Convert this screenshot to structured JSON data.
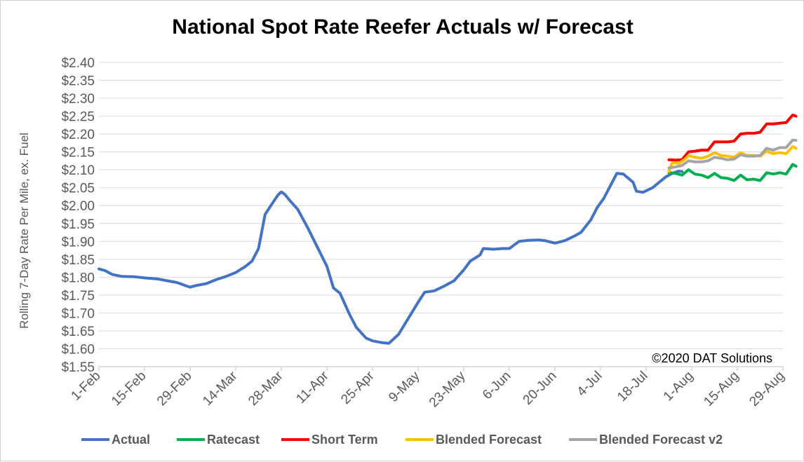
{
  "chart_data": {
    "type": "line",
    "title": "National Spot Rate Reefer Actuals w/ Forecast",
    "ylabel": "Rolling 7-Day Rate Per Mile, ex. Fuel",
    "xlabel": "",
    "annotation": "©2020 DAT Solutions",
    "ylim": [
      1.55,
      2.4
    ],
    "y_ticks": [
      "$1.55",
      "$1.60",
      "$1.65",
      "$1.70",
      "$1.75",
      "$1.80",
      "$1.85",
      "$1.90",
      "$1.95",
      "$2.00",
      "$2.05",
      "$2.10",
      "$2.15",
      "$2.20",
      "$2.25",
      "$2.30",
      "$2.35",
      "$2.40"
    ],
    "x_ticks": [
      "1-Feb",
      "15-Feb",
      "29-Feb",
      "14-Mar",
      "28-Mar",
      "11-Apr",
      "25-Apr",
      "9-May",
      "23-May",
      "6-Jun",
      "20-Jun",
      "4-Jul",
      "18-Jul",
      "1-Aug",
      "15-Aug",
      "29-Aug"
    ],
    "x_domain": [
      "2020-02-01",
      "2020-08-29"
    ],
    "legend_position": "bottom",
    "grid": "horizontal",
    "series": [
      {
        "name": "Actual",
        "color": "#4472C4",
        "points": [
          [
            "2020-02-01",
            1.823
          ],
          [
            "2020-02-03",
            1.818
          ],
          [
            "2020-02-05",
            1.808
          ],
          [
            "2020-02-08",
            1.802
          ],
          [
            "2020-02-12",
            1.801
          ],
          [
            "2020-02-15",
            1.798
          ],
          [
            "2020-02-19",
            1.795
          ],
          [
            "2020-02-22",
            1.79
          ],
          [
            "2020-02-25",
            1.785
          ],
          [
            "2020-02-28",
            1.775
          ],
          [
            "2020-02-29",
            1.772
          ],
          [
            "2020-03-02",
            1.777
          ],
          [
            "2020-03-05",
            1.782
          ],
          [
            "2020-03-08",
            1.793
          ],
          [
            "2020-03-11",
            1.802
          ],
          [
            "2020-03-14",
            1.813
          ],
          [
            "2020-03-17",
            1.83
          ],
          [
            "2020-03-19",
            1.845
          ],
          [
            "2020-03-21",
            1.88
          ],
          [
            "2020-03-23",
            1.975
          ],
          [
            "2020-03-25",
            2.003
          ],
          [
            "2020-03-27",
            2.03
          ],
          [
            "2020-03-28",
            2.038
          ],
          [
            "2020-03-29",
            2.032
          ],
          [
            "2020-03-31",
            2.01
          ],
          [
            "2020-04-02",
            1.99
          ],
          [
            "2020-04-05",
            1.94
          ],
          [
            "2020-04-08",
            1.885
          ],
          [
            "2020-04-11",
            1.83
          ],
          [
            "2020-04-13",
            1.77
          ],
          [
            "2020-04-15",
            1.755
          ],
          [
            "2020-04-18",
            1.695
          ],
          [
            "2020-04-20",
            1.66
          ],
          [
            "2020-04-23",
            1.63
          ],
          [
            "2020-04-25",
            1.622
          ],
          [
            "2020-04-28",
            1.617
          ],
          [
            "2020-04-30",
            1.615
          ],
          [
            "2020-05-03",
            1.64
          ],
          [
            "2020-05-05",
            1.67
          ],
          [
            "2020-05-07",
            1.7
          ],
          [
            "2020-05-09",
            1.73
          ],
          [
            "2020-05-11",
            1.758
          ],
          [
            "2020-05-14",
            1.762
          ],
          [
            "2020-05-17",
            1.775
          ],
          [
            "2020-05-20",
            1.79
          ],
          [
            "2020-05-23",
            1.82
          ],
          [
            "2020-05-25",
            1.845
          ],
          [
            "2020-05-28",
            1.862
          ],
          [
            "2020-05-29",
            1.88
          ],
          [
            "2020-06-01",
            1.878
          ],
          [
            "2020-06-04",
            1.88
          ],
          [
            "2020-06-06",
            1.88
          ],
          [
            "2020-06-09",
            1.9
          ],
          [
            "2020-06-12",
            1.903
          ],
          [
            "2020-06-15",
            1.904
          ],
          [
            "2020-06-17",
            1.902
          ],
          [
            "2020-06-20",
            1.895
          ],
          [
            "2020-06-23",
            1.902
          ],
          [
            "2020-06-26",
            1.915
          ],
          [
            "2020-06-28",
            1.925
          ],
          [
            "2020-07-01",
            1.96
          ],
          [
            "2020-07-03",
            1.995
          ],
          [
            "2020-07-05",
            2.02
          ],
          [
            "2020-07-07",
            2.055
          ],
          [
            "2020-07-09",
            2.09
          ],
          [
            "2020-07-11",
            2.088
          ],
          [
            "2020-07-14",
            2.065
          ],
          [
            "2020-07-15",
            2.04
          ],
          [
            "2020-07-17",
            2.037
          ],
          [
            "2020-07-20",
            2.05
          ],
          [
            "2020-07-22",
            2.065
          ],
          [
            "2020-07-24",
            2.08
          ],
          [
            "2020-07-26",
            2.09
          ],
          [
            "2020-07-28",
            2.096
          ],
          [
            "2020-07-29",
            2.095
          ]
        ]
      },
      {
        "name": "Ratecast",
        "color": "#00B050",
        "points": [
          [
            "2020-07-25",
            2.092
          ],
          [
            "2020-07-27",
            2.09
          ],
          [
            "2020-07-29",
            2.085
          ],
          [
            "2020-07-31",
            2.1
          ],
          [
            "2020-08-02",
            2.088
          ],
          [
            "2020-08-04",
            2.085
          ],
          [
            "2020-08-06",
            2.078
          ],
          [
            "2020-08-08",
            2.09
          ],
          [
            "2020-08-10",
            2.078
          ],
          [
            "2020-08-12",
            2.076
          ],
          [
            "2020-08-14",
            2.07
          ],
          [
            "2020-08-16",
            2.085
          ],
          [
            "2020-08-18",
            2.072
          ],
          [
            "2020-08-20",
            2.074
          ],
          [
            "2020-08-22",
            2.07
          ],
          [
            "2020-08-24",
            2.092
          ],
          [
            "2020-08-26",
            2.088
          ],
          [
            "2020-08-28",
            2.092
          ],
          [
            "2020-08-30",
            2.088
          ],
          [
            "2020-09-01",
            2.115
          ],
          [
            "2020-09-02",
            2.11
          ]
        ]
      },
      {
        "name": "Short Term",
        "color": "#FF0000",
        "points": [
          [
            "2020-07-25",
            2.128
          ],
          [
            "2020-07-27",
            2.127
          ],
          [
            "2020-07-29",
            2.128
          ],
          [
            "2020-07-31",
            2.15
          ],
          [
            "2020-08-02",
            2.152
          ],
          [
            "2020-08-04",
            2.155
          ],
          [
            "2020-08-06",
            2.155
          ],
          [
            "2020-08-08",
            2.178
          ],
          [
            "2020-08-10",
            2.178
          ],
          [
            "2020-08-12",
            2.178
          ],
          [
            "2020-08-14",
            2.18
          ],
          [
            "2020-08-16",
            2.2
          ],
          [
            "2020-08-18",
            2.202
          ],
          [
            "2020-08-20",
            2.202
          ],
          [
            "2020-08-22",
            2.205
          ],
          [
            "2020-08-24",
            2.228
          ],
          [
            "2020-08-26",
            2.228
          ],
          [
            "2020-08-28",
            2.23
          ],
          [
            "2020-08-30",
            2.232
          ],
          [
            "2020-09-01",
            2.253
          ],
          [
            "2020-09-02",
            2.25
          ]
        ]
      },
      {
        "name": "Blended Forecast",
        "color": "#FFC000",
        "points": [
          [
            "2020-07-25",
            2.095
          ],
          [
            "2020-07-26",
            2.12
          ],
          [
            "2020-07-28",
            2.118
          ],
          [
            "2020-07-30",
            2.13
          ],
          [
            "2020-07-31",
            2.14
          ],
          [
            "2020-08-02",
            2.135
          ],
          [
            "2020-08-04",
            2.132
          ],
          [
            "2020-08-06",
            2.138
          ],
          [
            "2020-08-08",
            2.148
          ],
          [
            "2020-08-10",
            2.14
          ],
          [
            "2020-08-12",
            2.138
          ],
          [
            "2020-08-14",
            2.135
          ],
          [
            "2020-08-16",
            2.148
          ],
          [
            "2020-08-18",
            2.14
          ],
          [
            "2020-08-20",
            2.14
          ],
          [
            "2020-08-22",
            2.138
          ],
          [
            "2020-08-24",
            2.152
          ],
          [
            "2020-08-26",
            2.145
          ],
          [
            "2020-08-28",
            2.148
          ],
          [
            "2020-08-30",
            2.145
          ],
          [
            "2020-09-01",
            2.165
          ],
          [
            "2020-09-02",
            2.16
          ]
        ]
      },
      {
        "name": "Blended Forecast v2",
        "color": "#A5A5A5",
        "points": [
          [
            "2020-07-25",
            2.105
          ],
          [
            "2020-07-27",
            2.108
          ],
          [
            "2020-07-29",
            2.112
          ],
          [
            "2020-07-31",
            2.125
          ],
          [
            "2020-08-02",
            2.122
          ],
          [
            "2020-08-04",
            2.122
          ],
          [
            "2020-08-06",
            2.125
          ],
          [
            "2020-08-08",
            2.135
          ],
          [
            "2020-08-10",
            2.132
          ],
          [
            "2020-08-12",
            2.128
          ],
          [
            "2020-08-14",
            2.13
          ],
          [
            "2020-08-16",
            2.142
          ],
          [
            "2020-08-18",
            2.138
          ],
          [
            "2020-08-20",
            2.138
          ],
          [
            "2020-08-22",
            2.14
          ],
          [
            "2020-08-24",
            2.16
          ],
          [
            "2020-08-26",
            2.155
          ],
          [
            "2020-08-28",
            2.162
          ],
          [
            "2020-08-30",
            2.162
          ],
          [
            "2020-09-01",
            2.183
          ],
          [
            "2020-09-02",
            2.182
          ]
        ]
      }
    ]
  }
}
